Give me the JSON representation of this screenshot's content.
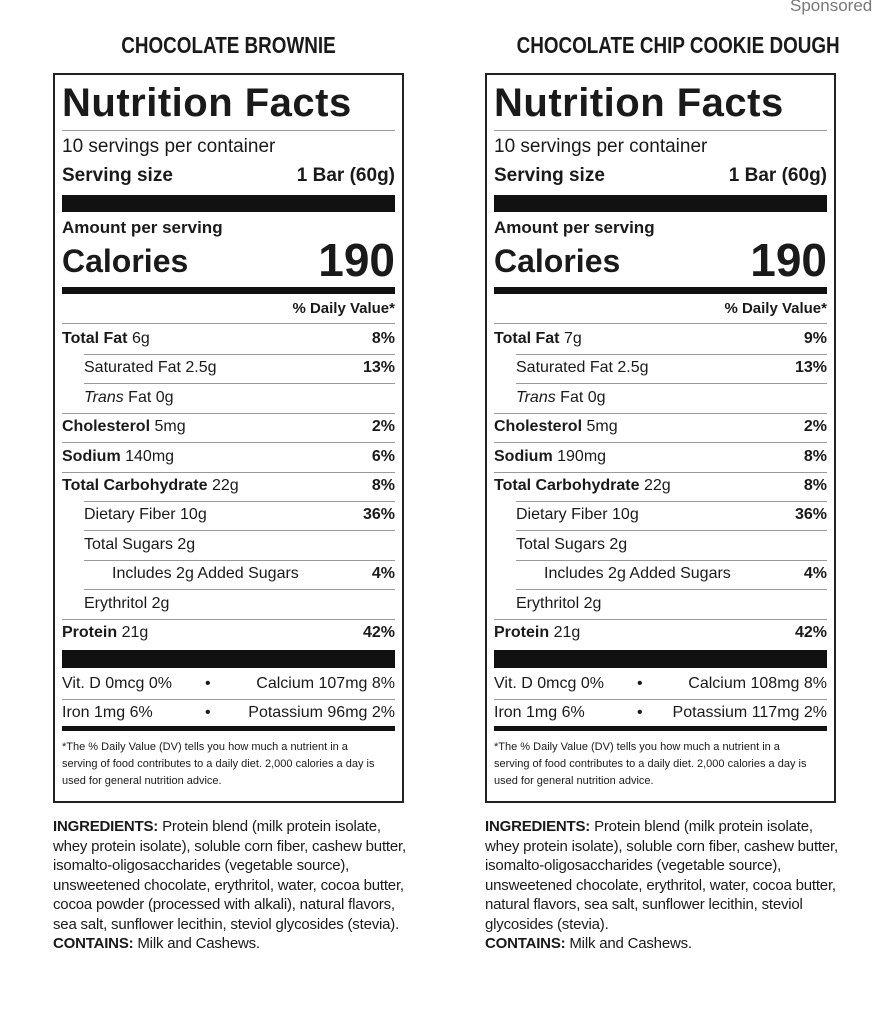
{
  "sponsored": "Sponsored",
  "labels": [
    {
      "product": "CHOCOLATE BROWNIE",
      "heading": "Nutrition Facts",
      "servings": "10 servings per container",
      "serving_size_label": "Serving size",
      "serving_size": "1 Bar (60g)",
      "amount_per_serving": "Amount per serving",
      "calories_label": "Calories",
      "calories": "190",
      "dv_header": "% Daily Value*",
      "rows": [
        {
          "name": "Total Fat",
          "amount": "6g",
          "dv": "8%"
        },
        {
          "name": "Saturated Fat",
          "amount": "2.5g",
          "dv": "13%"
        },
        {
          "name_italic": "Trans",
          "name": "Fat",
          "amount": "0g"
        },
        {
          "name": "Cholesterol",
          "amount": "5mg",
          "dv": "2%"
        },
        {
          "name": "Sodium",
          "amount": "140mg",
          "dv": "6%"
        },
        {
          "name": "Total Carbohydrate",
          "amount": "22g",
          "dv": "8%"
        },
        {
          "name": "Dietary Fiber",
          "amount": "10g",
          "dv": "36%"
        },
        {
          "name": "Total Sugars",
          "amount": "2g"
        },
        {
          "name": "Includes 2g Added Sugars",
          "dv": "4%"
        },
        {
          "name": "Erythritol",
          "amount": "2g"
        },
        {
          "name": "Protein",
          "amount": "21g",
          "dv": "42%"
        }
      ],
      "minerals": [
        [
          "Vit. D 0mcg 0%",
          "Calcium 107mg 8%"
        ],
        [
          "Iron 1mg 6%",
          "Potassium 96mg 2%"
        ]
      ],
      "footnote": "*The % Daily Value (DV) tells you how much a nutrient in a serving of food contributes to a daily diet. 2,000 calories a day is used for general nutrition advice.",
      "ingredients_label": "INGREDIENTS:",
      "ingredients": "Protein blend (milk protein isolate, whey protein isolate), soluble corn fiber, cashew butter, isomalto-oligosaccharides (vegetable source), unsweetened chocolate, erythritol, water, cocoa butter, cocoa powder (processed with alkali), natural flavors, sea salt, sunflower lecithin, steviol glycosides (stevia).",
      "contains_label": "CONTAINS:",
      "contains": "Milk and Cashews."
    },
    {
      "product": "CHOCOLATE CHIP COOKIE DOUGH",
      "heading": "Nutrition Facts",
      "servings": "10 servings per container",
      "serving_size_label": "Serving size",
      "serving_size": "1 Bar (60g)",
      "amount_per_serving": "Amount per serving",
      "calories_label": "Calories",
      "calories": "190",
      "dv_header": "% Daily Value*",
      "rows": [
        {
          "name": "Total Fat",
          "amount": "7g",
          "dv": "9%"
        },
        {
          "name": "Saturated Fat",
          "amount": "2.5g",
          "dv": "13%"
        },
        {
          "name_italic": "Trans",
          "name": "Fat",
          "amount": "0g"
        },
        {
          "name": "Cholesterol",
          "amount": "5mg",
          "dv": "2%"
        },
        {
          "name": "Sodium",
          "amount": "190mg",
          "dv": "8%"
        },
        {
          "name": "Total Carbohydrate",
          "amount": "22g",
          "dv": "8%"
        },
        {
          "name": "Dietary Fiber",
          "amount": "10g",
          "dv": "36%"
        },
        {
          "name": "Total Sugars",
          "amount": "2g"
        },
        {
          "name": "Includes 2g Added Sugars",
          "dv": "4%"
        },
        {
          "name": "Erythritol",
          "amount": "2g"
        },
        {
          "name": "Protein",
          "amount": "21g",
          "dv": "42%"
        }
      ],
      "minerals": [
        [
          "Vit. D 0mcg 0%",
          "Calcium 108mg 8%"
        ],
        [
          "Iron 1mg 6%",
          "Potassium 117mg 2%"
        ]
      ],
      "footnote": "*The % Daily Value (DV) tells you how much a nutrient in a serving of food contributes to a daily diet. 2,000 calories a day is used for general nutrition advice.",
      "ingredients_label": "INGREDIENTS:",
      "ingredients": "Protein blend (milk protein isolate, whey protein isolate), soluble corn fiber, cashew butter, isomalto-oligosaccharides (vegetable source), unsweetened chocolate, erythritol, water, cocoa butter, natural flavors, sea salt, sunflower lecithin, steviol glycosides (stevia).",
      "contains_label": "CONTAINS:",
      "contains": "Milk and Cashews."
    }
  ]
}
